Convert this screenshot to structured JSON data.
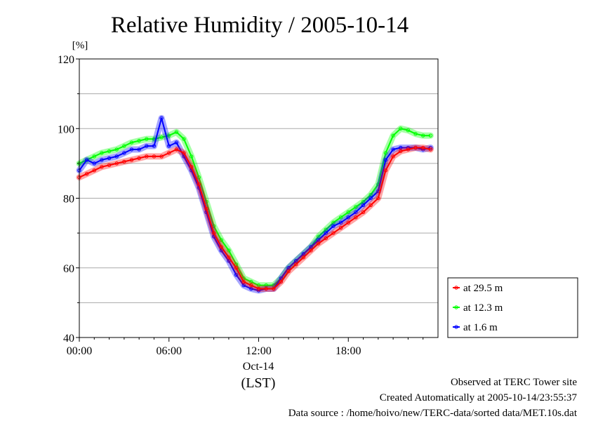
{
  "chart_data": {
    "type": "line",
    "title": "Relative Humidity / 2005-10-14",
    "ylabel": "[%]",
    "xlabel": "(LST)",
    "ylim": [
      40,
      120
    ],
    "xlim": [
      0,
      24
    ],
    "y_ticks": [
      {
        "value": 40,
        "label": "40"
      },
      {
        "value": 60,
        "label": "60"
      },
      {
        "value": 80,
        "label": "80"
      },
      {
        "value": 100,
        "label": "100"
      },
      {
        "value": 120,
        "label": "120"
      }
    ],
    "x_ticks": [
      {
        "value": 0,
        "label": "00:00"
      },
      {
        "value": 6,
        "label": "06:00"
      },
      {
        "value": 12,
        "label": "12:00"
      },
      {
        "value": 18,
        "label": "18:00"
      }
    ],
    "date_label": "Oct-14",
    "grid": true,
    "legend_position": "right",
    "series": [
      {
        "name": "at 29.5 m",
        "color": "#ff0000",
        "x": [
          0,
          0.5,
          1,
          1.5,
          2,
          2.5,
          3,
          3.5,
          4,
          4.5,
          5,
          5.5,
          6,
          6.5,
          7,
          7.5,
          8,
          8.5,
          9,
          9.5,
          10,
          10.5,
          11,
          11.5,
          12,
          12.5,
          13,
          13.5,
          14,
          14.5,
          15,
          15.5,
          16,
          16.5,
          17,
          17.5,
          18,
          18.5,
          19,
          19.5,
          20,
          20.5,
          21,
          21.5,
          22,
          22.5,
          23,
          23.5
        ],
        "y": [
          86,
          87,
          88,
          89,
          89.5,
          90,
          90.5,
          91,
          91.5,
          92,
          92,
          92,
          93,
          94,
          93,
          89,
          84,
          77,
          70,
          66,
          63,
          60,
          56,
          55,
          54,
          54,
          54,
          56,
          59,
          61,
          63,
          65,
          67,
          68.5,
          70,
          71.5,
          73,
          74.5,
          76,
          78,
          80,
          88,
          92,
          93.5,
          94,
          94.5,
          94.5,
          94
        ]
      },
      {
        "name": "at 12.3 m",
        "color": "#00ff00",
        "x": [
          0,
          0.5,
          1,
          1.5,
          2,
          2.5,
          3,
          3.5,
          4,
          4.5,
          5,
          5.5,
          6,
          6.5,
          7,
          7.5,
          8,
          8.5,
          9,
          9.5,
          10,
          10.5,
          11,
          11.5,
          12,
          12.5,
          13,
          13.5,
          14,
          14.5,
          15,
          15.5,
          16,
          16.5,
          17,
          17.5,
          18,
          18.5,
          19,
          19.5,
          20,
          20.5,
          21,
          21.5,
          22,
          22.5,
          23,
          23.5
        ],
        "y": [
          90,
          91,
          92,
          93,
          93.5,
          94,
          95,
          96,
          96.5,
          97,
          97,
          97.5,
          98,
          99,
          97,
          92,
          86,
          79,
          72,
          68,
          65,
          61,
          57,
          56,
          55,
          55,
          55,
          57,
          60,
          62,
          64,
          66,
          69,
          71,
          73,
          74.5,
          76,
          77.5,
          79,
          81,
          84,
          93,
          98,
          100,
          99.5,
          98.5,
          98,
          98
        ]
      },
      {
        "name": "at 1.6 m",
        "color": "#0000ff",
        "x": [
          0,
          0.5,
          1,
          1.5,
          2,
          2.5,
          3,
          3.5,
          4,
          4.5,
          5,
          5.5,
          6,
          6.5,
          7,
          7.5,
          8,
          8.5,
          9,
          9.5,
          10,
          10.5,
          11,
          11.5,
          12,
          12.5,
          13,
          13.5,
          14,
          14.5,
          15,
          15.5,
          16,
          16.5,
          17,
          17.5,
          18,
          18.5,
          19,
          19.5,
          20,
          20.5,
          21,
          21.5,
          22,
          22.5,
          23,
          23.5
        ],
        "y": [
          88,
          91,
          90,
          91,
          91.5,
          92,
          93,
          94,
          94,
          95,
          95,
          103,
          95,
          96,
          92,
          88,
          83,
          76,
          69,
          65,
          62,
          58,
          55,
          54,
          53.5,
          54,
          54,
          57,
          60,
          62,
          64,
          66,
          68,
          70,
          72,
          73,
          74.5,
          76,
          78,
          80,
          82,
          91,
          94,
          94.5,
          94.5,
          94.5,
          94,
          94.5
        ]
      }
    ]
  },
  "footer": {
    "line1": "Observed at TERC Tower site",
    "line2": "Created Automatically at 2005-10-14/23:55:37",
    "line3": "Data source : /home/hoivo/new/TERC-data/sorted  data/MET.10s.dat"
  }
}
